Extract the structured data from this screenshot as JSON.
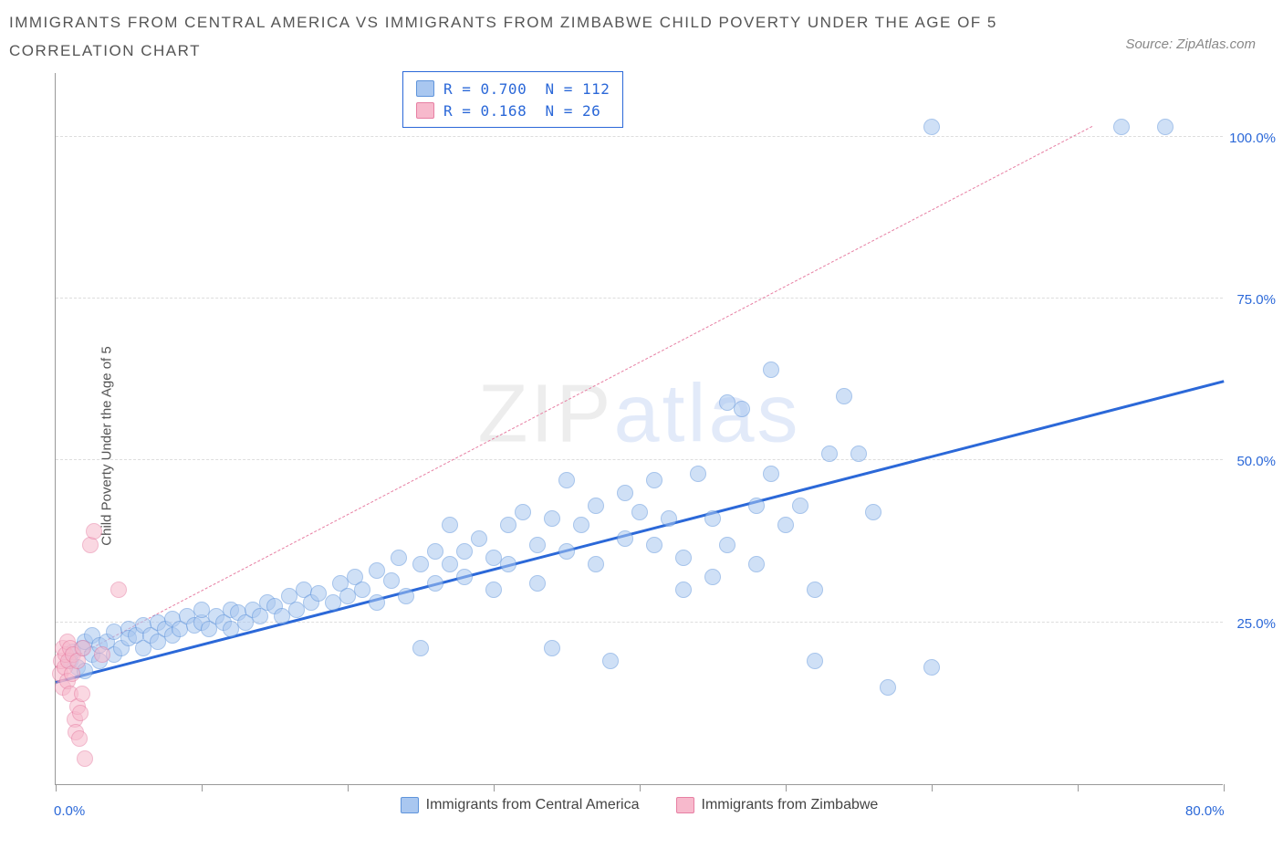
{
  "title": "IMMIGRANTS FROM CENTRAL AMERICA VS IMMIGRANTS FROM ZIMBABWE CHILD POVERTY UNDER THE AGE OF 5 CORRELATION CHART",
  "source_label": "Source: ZipAtlas.com",
  "ylabel": "Child Poverty Under the Age of 5",
  "watermark_a": "ZIP",
  "watermark_b": "atlas",
  "chart": {
    "type": "scatter",
    "background_color": "#ffffff",
    "grid_color": "#dddddd",
    "axis_color": "#999999",
    "xlim": [
      0,
      80
    ],
    "ylim": [
      0,
      110
    ],
    "x_ticks": [
      0,
      10,
      20,
      30,
      40,
      50,
      60,
      70,
      80
    ],
    "x_tick_labels": {
      "0": "0.0%",
      "80": "80.0%"
    },
    "y_gridlines": [
      25,
      50,
      75,
      100
    ],
    "y_tick_labels": [
      "25.0%",
      "50.0%",
      "75.0%",
      "100.0%"
    ],
    "point_radius": 9,
    "series": [
      {
        "name": "Immigrants from Central America",
        "fill": "#a9c7f0",
        "stroke": "#5f94db",
        "fill_opacity": 0.55,
        "R": "0.700",
        "N": "112",
        "trend": {
          "color": "#2b68d8",
          "width": 3,
          "dash": "solid",
          "x0": 0,
          "y0": 15.5,
          "x1": 80,
          "y1": 62
        },
        "points": [
          [
            1,
            19
          ],
          [
            1.2,
            20.5
          ],
          [
            1.5,
            18
          ],
          [
            1.8,
            21
          ],
          [
            2,
            22
          ],
          [
            2,
            17.5
          ],
          [
            2.5,
            20
          ],
          [
            2.5,
            23
          ],
          [
            3,
            21.5
          ],
          [
            3,
            19
          ],
          [
            3.5,
            22
          ],
          [
            4,
            23.5
          ],
          [
            4,
            20
          ],
          [
            4.5,
            21
          ],
          [
            5,
            24
          ],
          [
            5,
            22.5
          ],
          [
            5.5,
            23
          ],
          [
            6,
            24.5
          ],
          [
            6,
            21
          ],
          [
            6.5,
            23
          ],
          [
            7,
            25
          ],
          [
            7,
            22
          ],
          [
            7.5,
            24
          ],
          [
            8,
            25.5
          ],
          [
            8,
            23
          ],
          [
            8.5,
            24
          ],
          [
            9,
            26
          ],
          [
            9.5,
            24.5
          ],
          [
            10,
            25
          ],
          [
            10,
            27
          ],
          [
            10.5,
            24
          ],
          [
            11,
            26
          ],
          [
            11.5,
            25
          ],
          [
            12,
            27
          ],
          [
            12,
            24
          ],
          [
            12.5,
            26.5
          ],
          [
            13,
            25
          ],
          [
            13.5,
            27
          ],
          [
            14,
            26
          ],
          [
            14.5,
            28
          ],
          [
            15,
            27.5
          ],
          [
            15.5,
            26
          ],
          [
            16,
            29
          ],
          [
            16.5,
            27
          ],
          [
            17,
            30
          ],
          [
            17.5,
            28
          ],
          [
            18,
            29.5
          ],
          [
            19,
            28
          ],
          [
            19.5,
            31
          ],
          [
            20,
            29
          ],
          [
            20.5,
            32
          ],
          [
            21,
            30
          ],
          [
            22,
            33
          ],
          [
            22,
            28
          ],
          [
            23,
            31.5
          ],
          [
            23.5,
            35
          ],
          [
            24,
            29
          ],
          [
            25,
            34
          ],
          [
            25,
            21
          ],
          [
            26,
            36
          ],
          [
            26,
            31
          ],
          [
            27,
            40
          ],
          [
            27,
            34
          ],
          [
            28,
            36
          ],
          [
            28,
            32
          ],
          [
            29,
            38
          ],
          [
            30,
            35
          ],
          [
            30,
            30
          ],
          [
            31,
            40
          ],
          [
            31,
            34
          ],
          [
            32,
            42
          ],
          [
            33,
            37
          ],
          [
            33,
            31
          ],
          [
            34,
            41
          ],
          [
            35,
            36
          ],
          [
            35,
            47
          ],
          [
            36,
            40
          ],
          [
            37,
            43
          ],
          [
            37,
            34
          ],
          [
            38,
            19
          ],
          [
            39,
            45
          ],
          [
            39,
            38
          ],
          [
            40,
            42
          ],
          [
            41,
            37
          ],
          [
            41,
            47
          ],
          [
            42,
            41
          ],
          [
            43,
            35
          ],
          [
            43,
            30
          ],
          [
            44,
            48
          ],
          [
            45,
            32
          ],
          [
            45,
            41
          ],
          [
            46,
            59
          ],
          [
            46,
            37
          ],
          [
            47,
            58
          ],
          [
            48,
            43
          ],
          [
            48,
            34
          ],
          [
            49,
            48
          ],
          [
            49,
            64
          ],
          [
            50,
            40
          ],
          [
            51,
            43
          ],
          [
            52,
            30
          ],
          [
            52,
            19
          ],
          [
            53,
            51
          ],
          [
            54,
            60
          ],
          [
            55,
            51
          ],
          [
            56,
            42
          ],
          [
            57,
            15
          ],
          [
            60,
            18
          ],
          [
            60,
            101.5
          ],
          [
            73,
            101.5
          ],
          [
            76,
            101.5
          ],
          [
            34,
            21
          ]
        ]
      },
      {
        "name": "Immigrants from Zimbabwe",
        "fill": "#f7b9cc",
        "stroke": "#e77fa3",
        "fill_opacity": 0.55,
        "R": "0.168",
        "N": "26",
        "trend": {
          "color": "#e77fa3",
          "width": 1,
          "dash": "6,5",
          "x0": 0,
          "y0": 18,
          "x1": 71,
          "y1": 101.5
        },
        "points": [
          [
            0.3,
            17
          ],
          [
            0.4,
            19
          ],
          [
            0.5,
            15
          ],
          [
            0.5,
            21
          ],
          [
            0.6,
            18
          ],
          [
            0.7,
            20
          ],
          [
            0.8,
            16
          ],
          [
            0.8,
            22
          ],
          [
            0.9,
            19
          ],
          [
            1.0,
            14
          ],
          [
            1.0,
            21
          ],
          [
            1.1,
            17
          ],
          [
            1.2,
            20
          ],
          [
            1.3,
            10
          ],
          [
            1.4,
            8
          ],
          [
            1.5,
            12
          ],
          [
            1.5,
            19
          ],
          [
            1.6,
            7
          ],
          [
            1.7,
            11
          ],
          [
            1.8,
            14
          ],
          [
            1.9,
            21
          ],
          [
            2.0,
            4
          ],
          [
            2.4,
            37
          ],
          [
            2.6,
            39
          ],
          [
            3.2,
            20
          ],
          [
            4.3,
            30
          ]
        ]
      }
    ]
  },
  "legend": {
    "r_label": "R =",
    "n_label": "N =",
    "rows": [
      {
        "swatch_fill": "#a9c7f0",
        "swatch_stroke": "#5f94db",
        "r": "0.700",
        "n": "112"
      },
      {
        "swatch_fill": "#f7b9cc",
        "swatch_stroke": "#e77fa3",
        "r": "0.168",
        "n": "26"
      }
    ]
  },
  "bottom_legend": [
    {
      "swatch_fill": "#a9c7f0",
      "swatch_stroke": "#5f94db",
      "label": "Immigrants from Central America"
    },
    {
      "swatch_fill": "#f7b9cc",
      "swatch_stroke": "#e77fa3",
      "label": "Immigrants from Zimbabwe"
    }
  ]
}
